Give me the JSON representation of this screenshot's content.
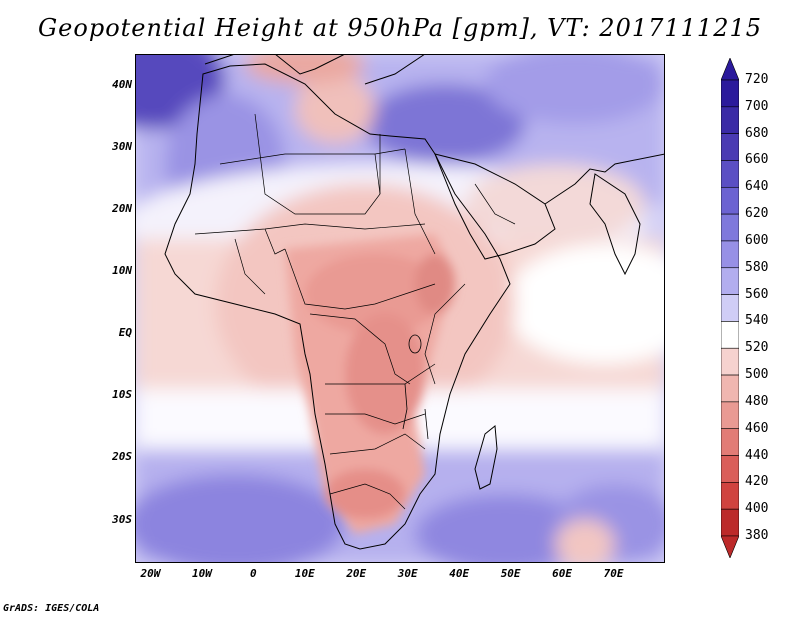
{
  "title": "Geopotential Height at 950hPa [gpm], VT: 2017111215",
  "credit": "GrADS: IGES/COLA",
  "map": {
    "lon_range": [
      -23,
      80
    ],
    "lat_range": [
      -37,
      45
    ],
    "lat_ticks": [
      {
        "value": 40,
        "label": "40N"
      },
      {
        "value": 30,
        "label": "30N"
      },
      {
        "value": 20,
        "label": "20N"
      },
      {
        "value": 10,
        "label": "10N"
      },
      {
        "value": 0,
        "label": "EQ"
      },
      {
        "value": -10,
        "label": "10S"
      },
      {
        "value": -20,
        "label": "20S"
      },
      {
        "value": -30,
        "label": "30S"
      }
    ],
    "lon_ticks": [
      {
        "value": -20,
        "label": "20W"
      },
      {
        "value": -10,
        "label": "10W"
      },
      {
        "value": 0,
        "label": "0"
      },
      {
        "value": 10,
        "label": "10E"
      },
      {
        "value": 20,
        "label": "20E"
      },
      {
        "value": 30,
        "label": "30E"
      },
      {
        "value": 40,
        "label": "40E"
      },
      {
        "value": 50,
        "label": "50E"
      },
      {
        "value": 60,
        "label": "60E"
      },
      {
        "value": 70,
        "label": "70E"
      }
    ]
  },
  "colorbar": {
    "levels": [
      "720",
      "700",
      "680",
      "660",
      "640",
      "620",
      "600",
      "580",
      "560",
      "540",
      "520",
      "500",
      "480",
      "460",
      "440",
      "420",
      "400",
      "380"
    ],
    "colors": [
      "#2b1a9c",
      "#3a2aa6",
      "#4a3ab3",
      "#5b4fc4",
      "#6c62d2",
      "#7f78dc",
      "#9790e6",
      "#b2adef",
      "#d0cdf6",
      "#ffffff",
      "#f6d2cf",
      "#f0b6b0",
      "#e99a93",
      "#e27c76",
      "#da5e59",
      "#d0433f",
      "#bc2a2a"
    ]
  }
}
